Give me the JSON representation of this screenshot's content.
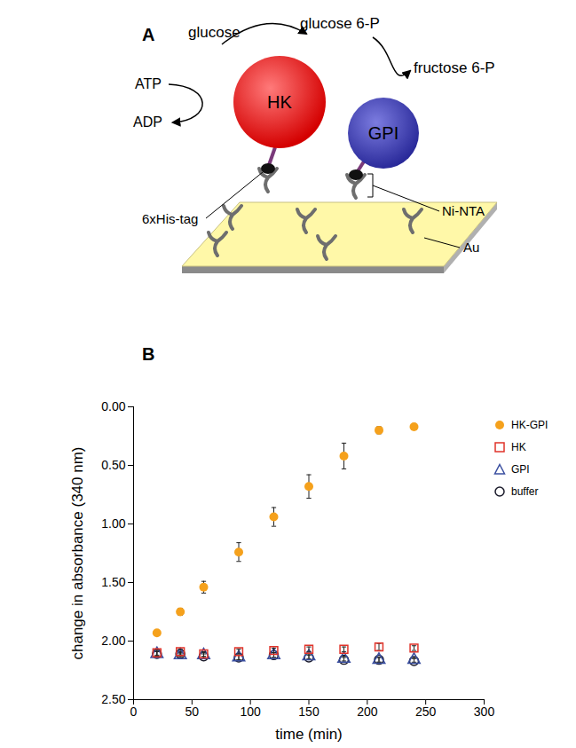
{
  "panel_labels": [
    "A",
    "B"
  ],
  "diagram": {
    "labels": {
      "hk": "HK",
      "gpi": "GPI",
      "glucose": "glucose",
      "glucose6p": "glucose 6-P",
      "fructose6p": "fructose 6-P",
      "atp": "ATP",
      "adp": "ADP",
      "his_tag": "6xHis-tag",
      "ni_nta": "Ni-NTA",
      "au": "Au"
    }
  },
  "chart_data": {
    "type": "scatter",
    "xlabel": "time (min)",
    "ylabel": "change in absorbance (340 nm)",
    "x": [
      20,
      40,
      60,
      90,
      120,
      150,
      180,
      210,
      240
    ],
    "series": [
      {
        "name": "HK-GPI",
        "color": "#f5a11c",
        "marker": "filled circle",
        "values": [
          1.93,
          1.75,
          1.54,
          1.24,
          0.94,
          0.68,
          0.42,
          0.2,
          0.17
        ],
        "errors": [
          0.02,
          0.03,
          0.05,
          0.08,
          0.08,
          0.1,
          0.11,
          0.03,
          0.02
        ]
      },
      {
        "name": "HK",
        "color": "#e0332a",
        "marker": "open square",
        "values": [
          2.1,
          2.09,
          2.11,
          2.09,
          2.08,
          2.07,
          2.07,
          2.05,
          2.06
        ],
        "errors": [
          0.02,
          0.02,
          0.02,
          0.02,
          0.02,
          0.02,
          0.02,
          0.03,
          0.02
        ]
      },
      {
        "name": "GPI",
        "color": "#3a4fa0",
        "marker": "open triangle",
        "values": [
          2.11,
          2.12,
          2.12,
          2.14,
          2.12,
          2.13,
          2.15,
          2.16,
          2.16
        ],
        "errors": [
          0.02,
          0.02,
          0.02,
          0.02,
          0.02,
          0.02,
          0.02,
          0.02,
          0.02
        ]
      },
      {
        "name": "buffer",
        "color": "#1a1a2a",
        "marker": "open circle",
        "values": [
          2.11,
          2.11,
          2.13,
          2.14,
          2.12,
          2.14,
          2.16,
          2.16,
          2.17
        ],
        "errors": [
          0.02,
          0.02,
          0.02,
          0.02,
          0.02,
          0.02,
          0.02,
          0.02,
          0.02
        ]
      }
    ],
    "xlim": [
      0,
      300
    ],
    "xticks": [
      0,
      50,
      100,
      150,
      200,
      250,
      300
    ],
    "ylim": [
      2.5,
      0
    ],
    "yticks": [
      {
        "value": 0,
        "label": "0.00"
      },
      {
        "value": 0.5,
        "label": "0.50"
      },
      {
        "value": 1,
        "label": "1.00"
      },
      {
        "value": 1.5,
        "label": "1.50"
      },
      {
        "value": 2,
        "label": "2.00"
      },
      {
        "value": 2.5,
        "label": "2.50"
      }
    ],
    "grid": false,
    "legend": "right"
  }
}
